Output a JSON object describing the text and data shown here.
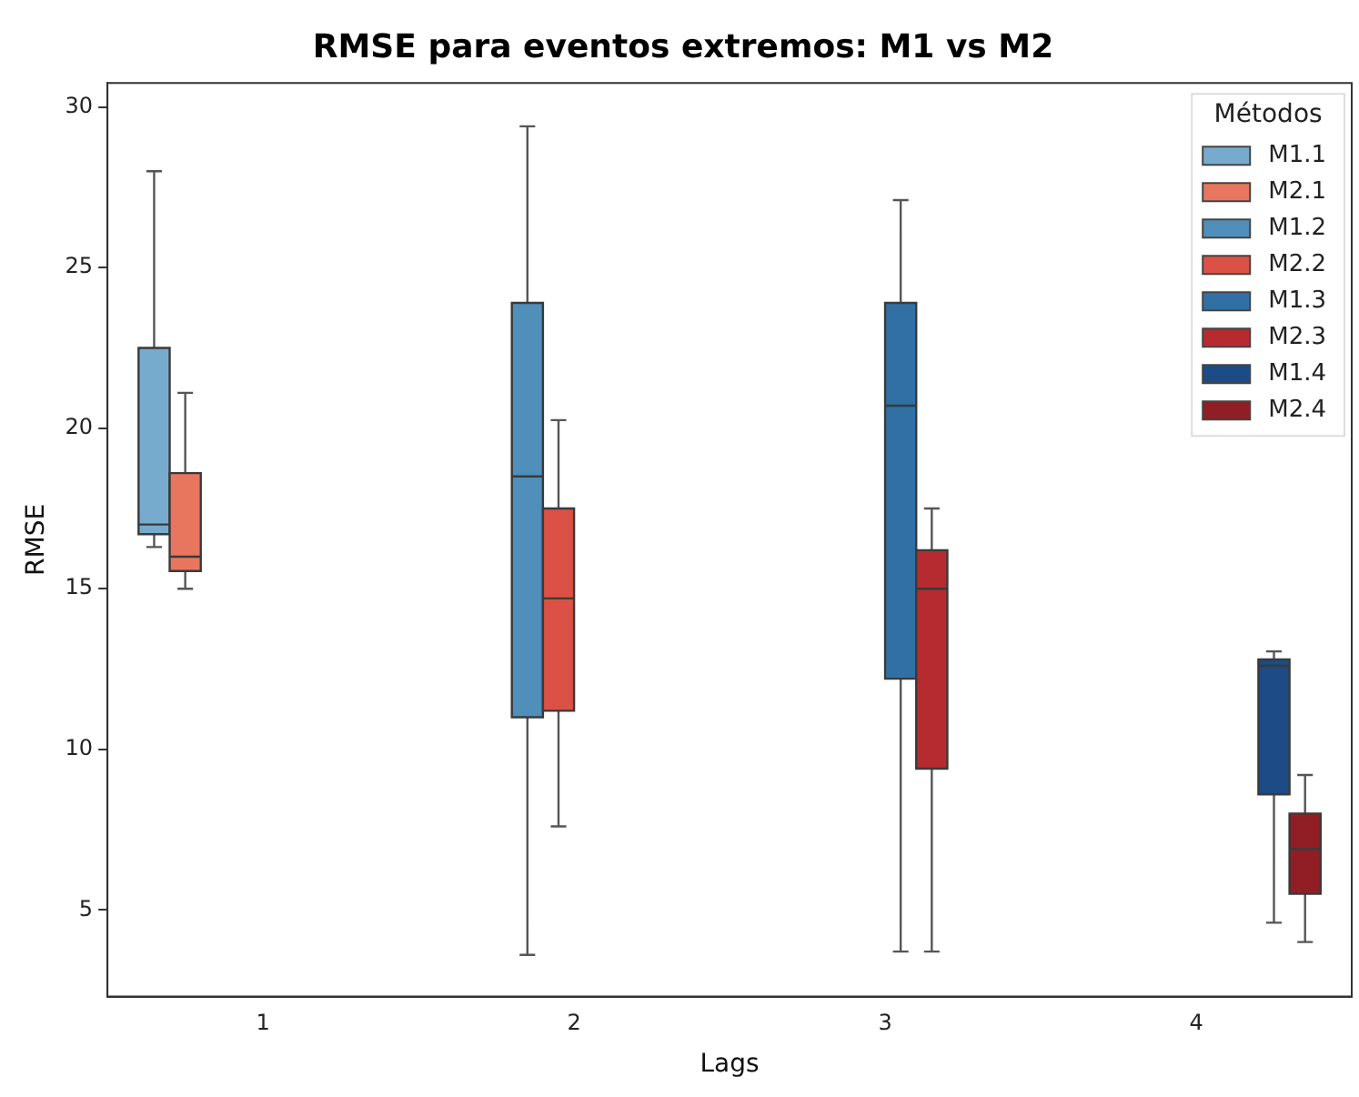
{
  "chart_data": {
    "type": "box",
    "title": "RMSE para eventos extremos: M1 vs M2",
    "xlabel": "Lags",
    "ylabel": "RMSE",
    "legend_title": "Métodos",
    "legend": "top right",
    "grid": false,
    "categories": [
      "1",
      "2",
      "3",
      "4"
    ],
    "ylim": [
      2.3,
      30.75
    ],
    "yticks": [
      5,
      10,
      15,
      20,
      25,
      30
    ],
    "series": [
      {
        "name": "M1.1",
        "color": "#76abce",
        "boxes": [
          {
            "low": 16.3,
            "q1": 16.7,
            "median": 17.0,
            "q3": 22.5,
            "high": 28.0
          },
          null,
          null,
          null
        ]
      },
      {
        "name": "M2.1",
        "color": "#e8765e",
        "boxes": [
          {
            "low": 15.0,
            "q1": 15.55,
            "median": 16.0,
            "q3": 18.6,
            "high": 21.1
          },
          null,
          null,
          null
        ]
      },
      {
        "name": "M1.2",
        "color": "#4f8fba",
        "boxes": [
          null,
          {
            "low": 3.6,
            "q1": 11.0,
            "median": 18.5,
            "q3": 23.9,
            "high": 29.4
          },
          null,
          null
        ]
      },
      {
        "name": "M2.2",
        "color": "#dc5145",
        "boxes": [
          null,
          {
            "low": 7.6,
            "q1": 11.2,
            "median": 14.7,
            "q3": 17.5,
            "high": 20.25
          },
          null,
          null
        ]
      },
      {
        "name": "M1.3",
        "color": "#3070a5",
        "boxes": [
          null,
          null,
          {
            "low": 3.7,
            "q1": 12.2,
            "median": 20.7,
            "q3": 23.9,
            "high": 27.1
          },
          null
        ]
      },
      {
        "name": "M2.3",
        "color": "#b52b30",
        "boxes": [
          null,
          null,
          {
            "low": 3.7,
            "q1": 9.4,
            "median": 15.0,
            "q3": 16.2,
            "high": 17.5
          },
          null
        ]
      },
      {
        "name": "M1.4",
        "color": "#1c4b86",
        "boxes": [
          null,
          null,
          null,
          {
            "low": 4.6,
            "q1": 8.6,
            "median": 12.6,
            "q3": 12.8,
            "high": 13.05
          }
        ]
      },
      {
        "name": "M2.4",
        "color": "#921e25",
        "boxes": [
          null,
          null,
          null,
          {
            "low": 4.0,
            "q1": 5.5,
            "median": 6.9,
            "q3": 8.0,
            "high": 9.2
          }
        ]
      }
    ]
  }
}
